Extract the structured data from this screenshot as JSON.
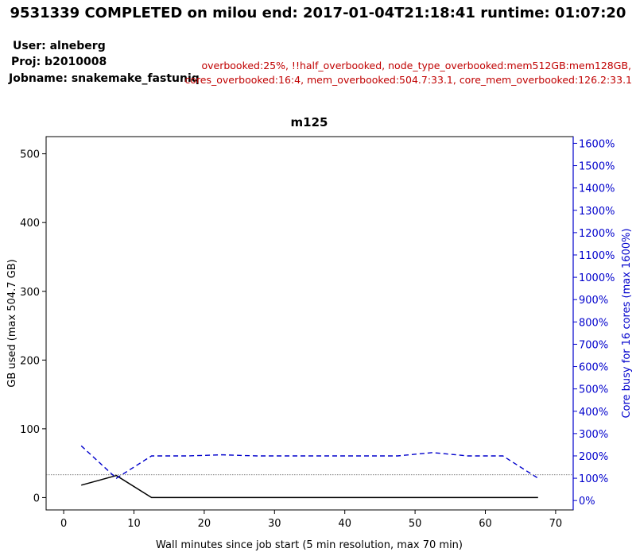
{
  "header": {
    "title": "9531339 COMPLETED on milou  end: 2017-01-04T21:18:41  runtime: 01:07:20",
    "user": "User: alneberg",
    "proj": "Proj: b2010008",
    "jobname": "Jobname: snakemake_fastuniq",
    "warning_line1": "overbooked:25%,  !!half_overbooked,  node_type_overbooked:mem512GB:mem128GB,",
    "warning_line2": "cores_overbooked:16:4,  mem_overbooked:504.7:33.1,  core_mem_overbooked:126.2:33.1"
  },
  "chart_data": {
    "type": "line",
    "title": "m125",
    "xlabel": "Wall minutes since job start (5 min resolution, max 70 min)",
    "ylabel": "GB used (max 504.7 GB)",
    "y2label": "Core busy for 16 cores (max 1600%)",
    "xlim": [
      -2.5,
      72.5
    ],
    "ylim": [
      -18,
      525
    ],
    "y2lim": [
      -42,
      1630
    ],
    "xticks": [
      0,
      10,
      20,
      30,
      40,
      50,
      60,
      70
    ],
    "yticks": [
      0,
      100,
      200,
      300,
      400,
      500
    ],
    "y2ticks": [
      0,
      100,
      200,
      300,
      400,
      500,
      600,
      700,
      800,
      900,
      1000,
      1100,
      1200,
      1300,
      1400,
      1500,
      1600
    ],
    "y2tick_labels": [
      "0%",
      "100%",
      "200%",
      "300%",
      "400%",
      "500%",
      "600%",
      "700%",
      "800%",
      "900%",
      "1000%",
      "1100%",
      "1200%",
      "1300%",
      "1400%",
      "1500%",
      "1600%"
    ],
    "reference_line": {
      "y": 33.1,
      "axis": "left",
      "style": "dotted"
    },
    "colors": {
      "memory": "#000000",
      "cpu": "#0000cc",
      "right_axis": "#0000cc",
      "warning": "#c00000",
      "reference": "#555555"
    },
    "series": [
      {
        "axis": "left",
        "style": "solid",
        "x": [
          2.5,
          7.5,
          12.5,
          17.5,
          22.5,
          27.5,
          32.5,
          37.5,
          42.5,
          47.5,
          52.5,
          57.5,
          62.5,
          67.5
        ],
        "values": [
          18,
          32,
          0,
          0,
          0,
          0,
          0,
          0,
          0,
          0,
          0,
          0,
          0,
          0
        ]
      },
      {
        "axis": "right",
        "style": "dashed",
        "x": [
          2.5,
          7.5,
          12.5,
          17.5,
          22.5,
          27.5,
          32.5,
          37.5,
          42.5,
          47.5,
          52.5,
          57.5,
          62.5,
          67.5
        ],
        "values": [
          245,
          100,
          200,
          200,
          205,
          200,
          200,
          200,
          200,
          200,
          215,
          200,
          200,
          100
        ]
      }
    ]
  }
}
